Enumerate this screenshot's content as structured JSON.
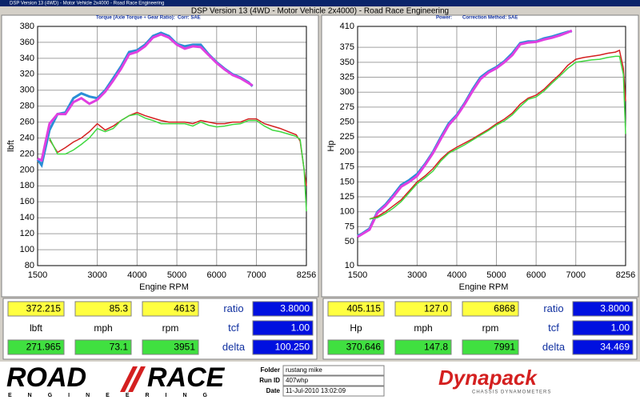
{
  "window": {
    "caption": "DSP Version 13 (4WD) - Motor Vehicle 2x4000 - Road Race Engineering",
    "title": "DSP Version 13 (4WD - Motor Vehicle 2x4000) - Road Race Engineering"
  },
  "chart_data": [
    {
      "type": "line",
      "header": "Torque (Axle Torque ÷ Gear Ratio):",
      "correction": "Corr: SAE",
      "x_label": "Engine RPM",
      "y_label": "lbft",
      "xlim": [
        1500,
        8256
      ],
      "xticks": [
        1500,
        3000,
        4000,
        5000,
        6000,
        7000,
        8256
      ],
      "ylim": [
        80,
        380
      ],
      "yticks": [
        80,
        100,
        120,
        140,
        160,
        180,
        200,
        220,
        240,
        260,
        280,
        300,
        320,
        340,
        360,
        380
      ],
      "grid": true,
      "x": [
        1500,
        1600,
        1800,
        2000,
        2200,
        2400,
        2600,
        2800,
        3000,
        3200,
        3400,
        3600,
        3800,
        4000,
        4200,
        4400,
        4600,
        4800,
        5000,
        5200,
        5400,
        5600,
        5800,
        6000,
        6200,
        6400,
        6600,
        6800,
        6900,
        7000,
        7200,
        7400,
        7600,
        7800,
        8000,
        8100,
        8200,
        8256
      ],
      "series": [
        {
          "color": "#2a8fd6",
          "values": [
            213,
            206,
            250,
            270,
            272,
            290,
            296,
            292,
            290,
            300,
            315,
            330,
            348,
            350,
            357,
            368,
            372,
            368,
            358,
            355,
            357,
            357,
            345,
            335,
            327,
            320,
            316,
            310,
            305,
            null,
            null,
            null,
            null,
            null,
            null,
            null,
            null,
            null
          ]
        },
        {
          "color": "#e040e0",
          "values": [
            214,
            212,
            258,
            270,
            270,
            285,
            290,
            283,
            288,
            298,
            312,
            327,
            345,
            348,
            355,
            366,
            370,
            366,
            357,
            352,
            355,
            354,
            344,
            334,
            326,
            319,
            315,
            309,
            306,
            null,
            null,
            null,
            null,
            null,
            null,
            null,
            null,
            null
          ]
        },
        {
          "color": "#d42020",
          "values": [
            null,
            null,
            238,
            222,
            228,
            235,
            240,
            248,
            258,
            250,
            255,
            262,
            268,
            272,
            268,
            265,
            262,
            260,
            260,
            260,
            258,
            262,
            260,
            258,
            258,
            260,
            260,
            264,
            264,
            264,
            258,
            255,
            252,
            248,
            244,
            236,
            200,
            180
          ]
        },
        {
          "color": "#40d840",
          "values": [
            null,
            null,
            240,
            220,
            220,
            225,
            232,
            240,
            252,
            248,
            252,
            262,
            268,
            270,
            265,
            262,
            258,
            258,
            258,
            258,
            255,
            260,
            256,
            254,
            255,
            257,
            258,
            262,
            262,
            262,
            255,
            250,
            248,
            245,
            242,
            238,
            200,
            148
          ]
        }
      ]
    },
    {
      "type": "line",
      "header": "Power:",
      "correction": "Correction Method: SAE",
      "x_label": "Engine RPM",
      "y_label": "Hp",
      "xlim": [
        1500,
        8256
      ],
      "xticks": [
        1500,
        3000,
        4000,
        5000,
        6000,
        7000,
        8256
      ],
      "ylim": [
        10,
        410
      ],
      "yticks": [
        10,
        50,
        75,
        100,
        125,
        150,
        175,
        200,
        225,
        250,
        275,
        300,
        325,
        350,
        375,
        410
      ],
      "grid": true,
      "x": [
        1500,
        1600,
        1800,
        2000,
        2200,
        2400,
        2600,
        2800,
        3000,
        3200,
        3400,
        3600,
        3800,
        4000,
        4200,
        4400,
        4600,
        4800,
        5000,
        5200,
        5400,
        5600,
        5800,
        6000,
        6200,
        6400,
        6600,
        6800,
        6900,
        7000,
        7200,
        7400,
        7600,
        7800,
        8000,
        8100,
        8200,
        8256
      ],
      "series": [
        {
          "color": "#2a8fd6",
          "values": [
            60,
            63,
            72,
            100,
            112,
            128,
            145,
            153,
            163,
            180,
            200,
            225,
            248,
            262,
            282,
            305,
            325,
            335,
            342,
            352,
            365,
            382,
            385,
            385,
            390,
            393,
            397,
            401,
            402,
            null,
            null,
            null,
            null,
            null,
            null,
            null,
            null,
            null
          ]
        },
        {
          "color": "#e040e0",
          "values": [
            58,
            62,
            70,
            98,
            110,
            125,
            142,
            150,
            160,
            178,
            198,
            222,
            245,
            260,
            280,
            302,
            322,
            333,
            340,
            350,
            362,
            380,
            383,
            384,
            388,
            391,
            395,
            400,
            403,
            null,
            null,
            null,
            null,
            null,
            null,
            null,
            null,
            null
          ]
        },
        {
          "color": "#d42020",
          "values": [
            null,
            null,
            88,
            92,
            100,
            110,
            120,
            135,
            150,
            160,
            172,
            188,
            200,
            208,
            215,
            222,
            230,
            238,
            247,
            255,
            265,
            280,
            290,
            295,
            305,
            318,
            330,
            345,
            350,
            355,
            358,
            360,
            362,
            365,
            367,
            370,
            340,
            285
          ]
        },
        {
          "color": "#40d840",
          "values": [
            null,
            null,
            88,
            90,
            97,
            106,
            117,
            132,
            147,
            157,
            168,
            185,
            198,
            205,
            212,
            220,
            228,
            236,
            245,
            252,
            262,
            276,
            288,
            292,
            302,
            315,
            327,
            340,
            345,
            350,
            352,
            354,
            355,
            358,
            360,
            360,
            330,
            230
          ]
        }
      ]
    }
  ],
  "readouts": [
    {
      "top": [
        "372.215",
        "85.3",
        "4613"
      ],
      "units": [
        "lbft",
        "mph",
        "rpm"
      ],
      "bottom": [
        "271.965",
        "73.1",
        "3951"
      ],
      "labels": [
        "ratio",
        "tcf",
        "delta"
      ],
      "settings": [
        "3.8000",
        "1.00",
        "100.250"
      ]
    },
    {
      "top": [
        "405.115",
        "127.0",
        "6868"
      ],
      "units": [
        "Hp",
        "mph",
        "rpm"
      ],
      "bottom": [
        "370.646",
        "147.8",
        "7991"
      ],
      "labels": [
        "ratio",
        "tcf",
        "delta"
      ],
      "settings": [
        "3.8000",
        "1.00",
        "34.469"
      ]
    }
  ],
  "footer": {
    "logo_left": "ROAD",
    "logo_right": "RACE",
    "logo_sub": "ENGINEERING",
    "fields": [
      {
        "label": "Folder",
        "value": "rustang mike"
      },
      {
        "label": "Run ID",
        "value": "407whp"
      },
      {
        "label": "Date",
        "value": "11-Jul-2010 13:02:09"
      }
    ],
    "brand": "Dynapack",
    "brand_sub": "CHASSIS DYNAMOMETERS"
  }
}
